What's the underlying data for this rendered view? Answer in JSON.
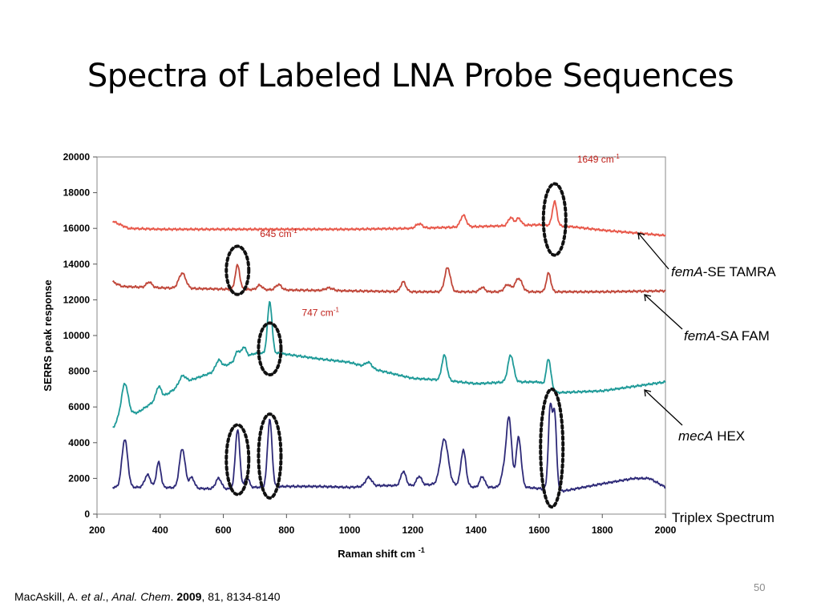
{
  "slide": {
    "title": "Spectra of Labeled LNA Probe Sequences",
    "page_number": "50"
  },
  "citation": {
    "author": "MacAskill, A. ",
    "etal": "et al",
    "sep1": "., ",
    "journal": "Anal. Chem",
    "sep2": ". ",
    "year": "2009",
    "rest": ", 81, 8134-8140"
  },
  "labels": {
    "tamra": {
      "gene": "femA",
      "rest": "-SE TAMRA"
    },
    "fam": {
      "gene": "femA",
      "rest": "-SA FAM"
    },
    "hex": {
      "gene": "mecA",
      "rest": " HEX"
    },
    "triplex": "Triplex Spectrum"
  },
  "chart_data": {
    "type": "line",
    "title": "",
    "xlabel": "Raman shift cm",
    "xlabel_superscript": "-1",
    "ylabel": "SERRS peak response",
    "xlim": [
      200,
      2000
    ],
    "ylim": [
      0,
      20000
    ],
    "xticks": [
      200,
      400,
      600,
      800,
      1000,
      1200,
      1400,
      1600,
      1800,
      2000
    ],
    "yticks": [
      0,
      2000,
      4000,
      6000,
      8000,
      10000,
      12000,
      14000,
      16000,
      18000,
      20000
    ],
    "grid": false,
    "series": [
      {
        "color": "#e8584a",
        "baseline": [
          [
            250,
            16400
          ],
          [
            300,
            16000
          ],
          [
            400,
            15950
          ],
          [
            600,
            15950
          ],
          [
            800,
            15950
          ],
          [
            1000,
            15950
          ],
          [
            1200,
            16000
          ],
          [
            1400,
            16100
          ],
          [
            1600,
            16200
          ],
          [
            1700,
            16100
          ],
          [
            1800,
            15900
          ],
          [
            1900,
            15750
          ],
          [
            2000,
            15600
          ]
        ],
        "peaks": [
          [
            1220,
            250,
            10
          ],
          [
            1360,
            650,
            9
          ],
          [
            1510,
            450,
            8
          ],
          [
            1535,
            400,
            8
          ],
          [
            1649,
            1350,
            7
          ]
        ]
      },
      {
        "color": "#c0473a",
        "baseline": [
          [
            250,
            13000
          ],
          [
            280,
            12750
          ],
          [
            350,
            12700
          ],
          [
            450,
            12650
          ],
          [
            600,
            12600
          ],
          [
            800,
            12550
          ],
          [
            1000,
            12500
          ],
          [
            1200,
            12450
          ],
          [
            1400,
            12450
          ],
          [
            1600,
            12450
          ],
          [
            1800,
            12450
          ],
          [
            2000,
            12500
          ]
        ],
        "peaks": [
          [
            365,
            300,
            9
          ],
          [
            470,
            850,
            11
          ],
          [
            645,
            1350,
            7
          ],
          [
            715,
            250,
            8
          ],
          [
            775,
            300,
            9
          ],
          [
            935,
            150,
            12
          ],
          [
            1170,
            550,
            8
          ],
          [
            1310,
            1350,
            9
          ],
          [
            1420,
            250,
            8
          ],
          [
            1500,
            400,
            10
          ],
          [
            1535,
            750,
            11
          ],
          [
            1630,
            1050,
            7
          ]
        ]
      },
      {
        "color": "#1e9a98",
        "baseline": [
          [
            250,
            4800
          ],
          [
            270,
            5400
          ],
          [
            300,
            5600
          ],
          [
            330,
            5700
          ],
          [
            380,
            6300
          ],
          [
            420,
            6700
          ],
          [
            480,
            7400
          ],
          [
            560,
            7900
          ],
          [
            640,
            8600
          ],
          [
            700,
            9000
          ],
          [
            780,
            9000
          ],
          [
            900,
            8700
          ],
          [
            1000,
            8500
          ],
          [
            1080,
            8100
          ],
          [
            1200,
            7600
          ],
          [
            1300,
            7500
          ],
          [
            1400,
            7300
          ],
          [
            1500,
            7400
          ],
          [
            1600,
            7400
          ],
          [
            1660,
            6800
          ],
          [
            1800,
            6900
          ],
          [
            2000,
            7400
          ]
        ],
        "peaks": [
          [
            288,
            1800,
            10
          ],
          [
            395,
            700,
            8
          ],
          [
            470,
            450,
            10
          ],
          [
            585,
            500,
            9
          ],
          [
            645,
            500,
            7
          ],
          [
            665,
            600,
            7
          ],
          [
            747,
            2900,
            7
          ],
          [
            1060,
            300,
            10
          ],
          [
            1300,
            1400,
            8
          ],
          [
            1510,
            1500,
            9
          ],
          [
            1630,
            1600,
            7
          ]
        ]
      },
      {
        "color": "#2e2a78",
        "baseline": [
          [
            250,
            1500
          ],
          [
            300,
            1500
          ],
          [
            400,
            1500
          ],
          [
            600,
            1400
          ],
          [
            700,
            1500
          ],
          [
            800,
            1550
          ],
          [
            900,
            1550
          ],
          [
            1000,
            1500
          ],
          [
            1100,
            1600
          ],
          [
            1200,
            1600
          ],
          [
            1300,
            1700
          ],
          [
            1400,
            1500
          ],
          [
            1500,
            1500
          ],
          [
            1560,
            1500
          ],
          [
            1620,
            1400
          ],
          [
            1680,
            1300
          ],
          [
            1800,
            1700
          ],
          [
            1900,
            2000
          ],
          [
            1950,
            2000
          ],
          [
            2000,
            1500
          ]
        ],
        "peaks": [
          [
            288,
            2700,
            9
          ],
          [
            360,
            700,
            9
          ],
          [
            395,
            1400,
            7
          ],
          [
            470,
            2200,
            9
          ],
          [
            500,
            600,
            8
          ],
          [
            585,
            600,
            9
          ],
          [
            645,
            3300,
            7
          ],
          [
            675,
            600,
            7
          ],
          [
            747,
            3800,
            7
          ],
          [
            1060,
            500,
            10
          ],
          [
            1170,
            800,
            8
          ],
          [
            1220,
            500,
            8
          ],
          [
            1300,
            2500,
            12
          ],
          [
            1360,
            2000,
            8
          ],
          [
            1420,
            600,
            8
          ],
          [
            1490,
            1000,
            9
          ],
          [
            1505,
            3700,
            8
          ],
          [
            1535,
            2800,
            8
          ],
          [
            1635,
            4500,
            6
          ],
          [
            1649,
            4200,
            6
          ]
        ]
      }
    ],
    "peak_annotations": [
      {
        "label": "1649 cm",
        "sup": "-1",
        "x": 1649,
        "y": 17000,
        "color": "#c0201a"
      },
      {
        "label": "645 cm",
        "sup": "-1",
        "x": 645,
        "y": 13500,
        "color": "#c0201a"
      },
      {
        "label": "747 cm",
        "sup": "-1",
        "x": 747,
        "y": 10200,
        "color": "#c0201a"
      }
    ],
    "highlighted_peaks": [
      {
        "x": 1649,
        "y_low": 14500,
        "y_high": 18500
      },
      {
        "x": 645,
        "y_low": 12300,
        "y_high": 15000
      },
      {
        "x": 747,
        "y_low": 7800,
        "y_high": 10700
      },
      {
        "x": 645,
        "y_low": 1100,
        "y_high": 5000
      },
      {
        "x": 747,
        "y_low": 900,
        "y_high": 5600
      },
      {
        "x": 1640,
        "y_low": 400,
        "y_high": 7000
      }
    ]
  }
}
